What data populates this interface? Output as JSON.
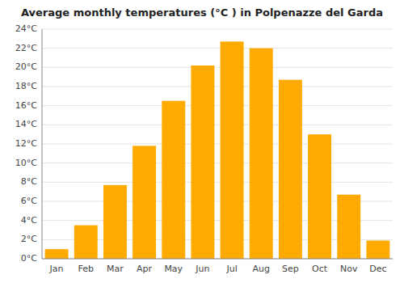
{
  "chart_data": {
    "type": "bar",
    "title": "Average monthly temperatures (°C ) in Polpenazze del Garda",
    "categories": [
      "Jan",
      "Feb",
      "Mar",
      "Apr",
      "May",
      "Jun",
      "Jul",
      "Aug",
      "Sep",
      "Oct",
      "Nov",
      "Dec"
    ],
    "values": [
      1.0,
      3.5,
      7.7,
      11.8,
      16.5,
      20.2,
      22.7,
      22.0,
      18.7,
      13.0,
      6.7,
      1.9
    ],
    "color": "#FFAA00",
    "ylim": [
      0,
      24
    ],
    "yticks": [
      {
        "value": 0,
        "label": "0°C"
      },
      {
        "value": 2,
        "label": "2°C"
      },
      {
        "value": 4,
        "label": "4°C"
      },
      {
        "value": 6,
        "label": "6°C"
      },
      {
        "value": 8,
        "label": "8°C"
      },
      {
        "value": 10,
        "label": "10°C"
      },
      {
        "value": 12,
        "label": "12°C"
      },
      {
        "value": 14,
        "label": "14°C"
      },
      {
        "value": 16,
        "label": "16°C"
      },
      {
        "value": 18,
        "label": "18°C"
      },
      {
        "value": 20,
        "label": "20°C"
      },
      {
        "value": 22,
        "label": "22°C"
      },
      {
        "value": 24,
        "label": "24°C"
      }
    ],
    "grid": true
  }
}
